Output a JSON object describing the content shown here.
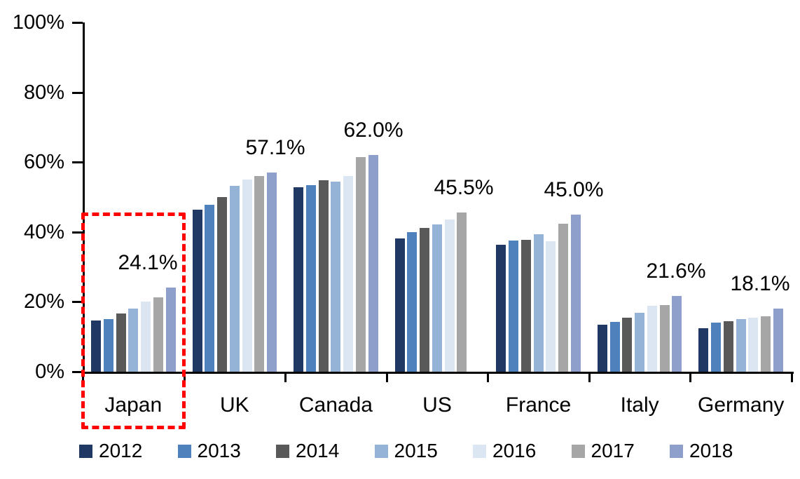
{
  "chart_data": {
    "type": "bar",
    "title": "",
    "xlabel": "",
    "ylabel": "",
    "ylim": [
      0,
      100
    ],
    "y_tick_labels": [
      "100%",
      "80%",
      "60%",
      "40%",
      "20%",
      "0%"
    ],
    "grid": false,
    "legend_position": "bottom",
    "categories": [
      "Japan",
      "UK",
      "Canada",
      "US",
      "France",
      "Italy",
      "Germany"
    ],
    "series": [
      {
        "name": "2012",
        "color": "#1F3864",
        "values": [
          14.7,
          46.4,
          52.8,
          38.2,
          36.4,
          13.5,
          12.5
        ]
      },
      {
        "name": "2013",
        "color": "#4F81BD",
        "values": [
          15.0,
          47.8,
          53.4,
          40.0,
          37.6,
          14.3,
          14.1
        ]
      },
      {
        "name": "2014",
        "color": "#595959",
        "values": [
          16.6,
          50.0,
          54.8,
          41.2,
          37.7,
          15.5,
          14.5
        ]
      },
      {
        "name": "2015",
        "color": "#95B3D7",
        "values": [
          18.1,
          53.2,
          54.5,
          42.2,
          39.4,
          16.9,
          15.1
        ]
      },
      {
        "name": "2016",
        "color": "#DCE6F2",
        "values": [
          20.1,
          55.0,
          56.0,
          43.6,
          37.4,
          18.9,
          15.5
        ]
      },
      {
        "name": "2017",
        "color": "#A6A6A6",
        "values": [
          21.3,
          56.0,
          61.5,
          45.5,
          42.4,
          19.1,
          15.9
        ]
      },
      {
        "name": "2018",
        "color": "#8F9FCC",
        "values": [
          24.1,
          57.1,
          62.0,
          null,
          45.0,
          21.6,
          18.1
        ]
      }
    ],
    "data_labels": [
      "24.1%",
      "57.1%",
      "62.0%",
      "45.5%",
      "45.0%",
      "21.6%",
      "18.1%"
    ],
    "annotations": {
      "highlight": "red dashed rectangle around Japan group",
      "highlight_color": "#FE0000"
    }
  }
}
